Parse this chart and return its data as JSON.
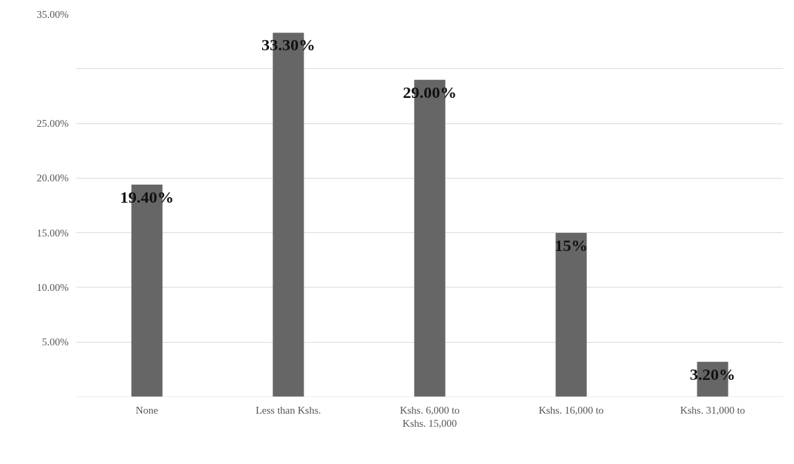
{
  "chart_data": {
    "type": "bar",
    "categories": [
      "None",
      "Less than Kshs.",
      "Kshs. 6,000 to\nKshs. 15,000",
      "Kshs. 16,000 to",
      "Kshs. 31,000 to"
    ],
    "values": [
      19.4,
      33.3,
      29.0,
      15,
      3.2
    ],
    "value_labels": [
      "19.40%",
      "33.30%",
      "29.00%",
      "15%",
      "3.20%"
    ],
    "color": "#666666",
    "ylim": [
      0,
      35
    ],
    "yticks": [
      {
        "value": 0,
        "label": null
      },
      {
        "value": 5,
        "label": "5.00%"
      },
      {
        "value": 10,
        "label": "10.00%"
      },
      {
        "value": 15,
        "label": "15.00%"
      },
      {
        "value": 20,
        "label": "20.00%"
      },
      {
        "value": 25,
        "label": "25.00%"
      },
      {
        "value": 30,
        "label": null
      },
      {
        "value": 35,
        "label": "35.00%"
      }
    ],
    "grid": "y"
  }
}
